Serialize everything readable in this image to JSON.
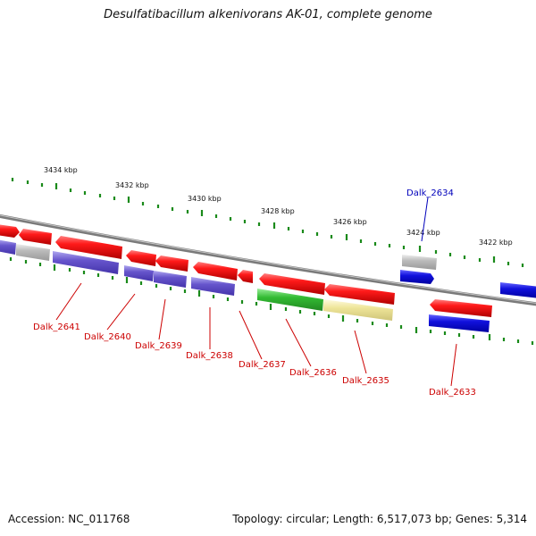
{
  "title": "Desulfatibacillum alkenivorans AK-01, complete genome",
  "footer": {
    "accession": "Accession: NC_011768",
    "topology": "Topology: circular; Length: 6,517,073 bp; Genes: 5,314"
  },
  "colors": {
    "backbone": "#808080",
    "tick": "#1a8a1a",
    "forward_gene": "#ee1111",
    "reverse_gene": "#6655cc",
    "rna_gene": "#1111dd",
    "gray_gene": "#bbbbbb",
    "green_gene": "#33bb33",
    "yellow_gene": "#eee599",
    "label_default": "#cc0000",
    "label_highlight": "#0000bb"
  },
  "scale_labels": [
    "3434 kbp",
    "3432 kbp",
    "3430 kbp",
    "3428 kbp",
    "3426 kbp",
    "3424 kbp",
    "3422 kbp"
  ],
  "gene_labels": [
    {
      "name": "Dalk_2641",
      "color": "#cc0000"
    },
    {
      "name": "Dalk_2640",
      "color": "#cc0000"
    },
    {
      "name": "Dalk_2639",
      "color": "#cc0000"
    },
    {
      "name": "Dalk_2638",
      "color": "#cc0000"
    },
    {
      "name": "Dalk_2637",
      "color": "#cc0000"
    },
    {
      "name": "Dalk_2636",
      "color": "#cc0000"
    },
    {
      "name": "Dalk_2635",
      "color": "#cc0000"
    },
    {
      "name": "Dalk_2633",
      "color": "#cc0000"
    },
    {
      "name": "Dalk_2634",
      "color": "#0000bb"
    }
  ]
}
